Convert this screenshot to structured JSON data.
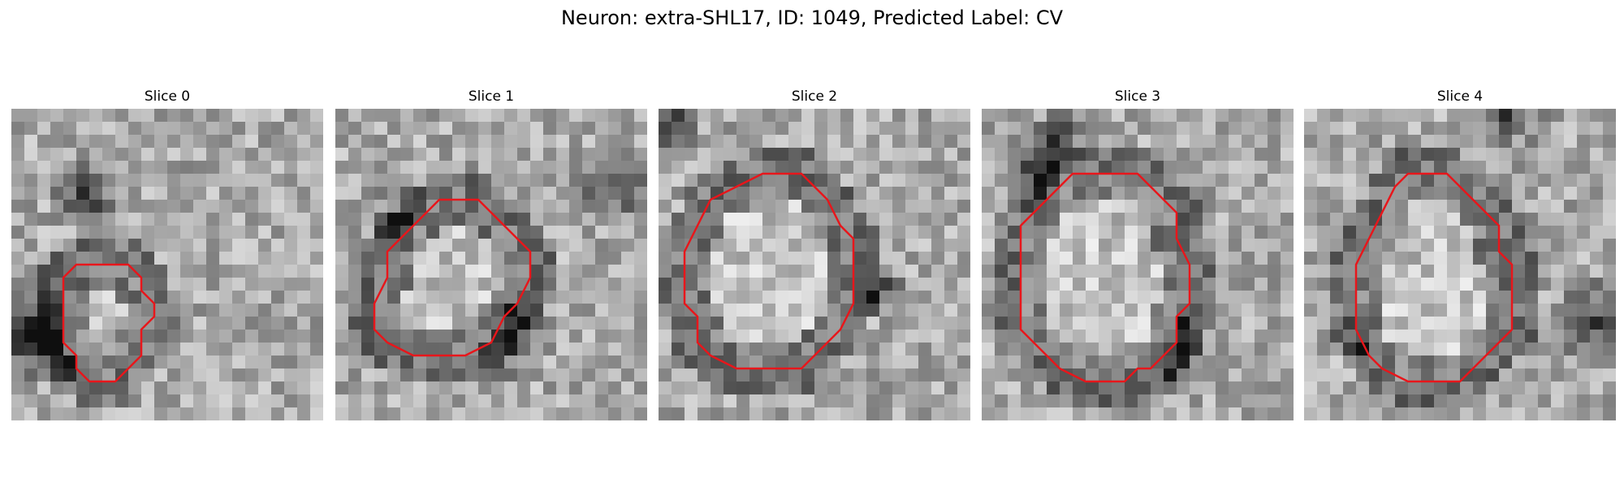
{
  "figure": {
    "title": "Neuron: extra-SHL17, ID: 1049, Predicted Label: CV"
  },
  "colors": {
    "contour": "#e8161b",
    "background": "#ffffff"
  },
  "panels": [
    {
      "title": "Slice 0",
      "seed": 11,
      "image_description": "grayscale EM patch with small contour lower-left of center",
      "contour": [
        [
          7,
          12
        ],
        [
          9,
          12
        ],
        [
          10,
          13
        ],
        [
          10,
          14
        ],
        [
          11,
          15
        ],
        [
          11,
          16
        ],
        [
          10,
          17
        ],
        [
          10,
          19
        ],
        [
          8,
          21
        ],
        [
          6,
          21
        ],
        [
          5,
          20
        ],
        [
          5,
          19
        ],
        [
          4,
          18
        ],
        [
          4,
          13
        ],
        [
          5,
          12
        ]
      ]
    },
    {
      "title": "Slice 1",
      "seed": 23,
      "image_description": "grayscale EM patch with large octagonal contour",
      "contour": [
        [
          8,
          7
        ],
        [
          11,
          7
        ],
        [
          13,
          9
        ],
        [
          14,
          10
        ],
        [
          15,
          11
        ],
        [
          15,
          13
        ],
        [
          14,
          15
        ],
        [
          13,
          16
        ],
        [
          12,
          18
        ],
        [
          10,
          19
        ],
        [
          6,
          19
        ],
        [
          4,
          18
        ],
        [
          3,
          17
        ],
        [
          3,
          15
        ],
        [
          4,
          13
        ],
        [
          4,
          11
        ],
        [
          5,
          10
        ],
        [
          6,
          9
        ]
      ]
    },
    {
      "title": "Slice 2",
      "seed": 37,
      "image_description": "grayscale EM patch with large octagonal contour",
      "contour": [
        [
          8,
          5
        ],
        [
          11,
          5
        ],
        [
          12,
          6
        ],
        [
          13,
          7
        ],
        [
          14,
          9
        ],
        [
          15,
          10
        ],
        [
          15,
          15
        ],
        [
          14,
          17
        ],
        [
          13,
          18
        ],
        [
          12,
          19
        ],
        [
          11,
          20
        ],
        [
          9,
          20
        ],
        [
          6,
          20
        ],
        [
          4,
          19
        ],
        [
          3,
          18
        ],
        [
          3,
          16
        ],
        [
          2,
          15
        ],
        [
          2,
          11
        ],
        [
          3,
          9
        ],
        [
          4,
          7
        ],
        [
          6,
          6
        ]
      ]
    },
    {
      "title": "Slice 3",
      "seed": 53,
      "image_description": "grayscale EM patch with large octagonal contour",
      "contour": [
        [
          7,
          5
        ],
        [
          12,
          5
        ],
        [
          14,
          7
        ],
        [
          15,
          8
        ],
        [
          15,
          10
        ],
        [
          16,
          12
        ],
        [
          16,
          15
        ],
        [
          15,
          16
        ],
        [
          15,
          18
        ],
        [
          14,
          19
        ],
        [
          13,
          20
        ],
        [
          12,
          20
        ],
        [
          11,
          21
        ],
        [
          8,
          21
        ],
        [
          6,
          20
        ],
        [
          5,
          19
        ],
        [
          4,
          18
        ],
        [
          3,
          17
        ],
        [
          3,
          13
        ],
        [
          3,
          9
        ],
        [
          4,
          8
        ]
      ]
    },
    {
      "title": "Slice 4",
      "seed": 71,
      "image_description": "grayscale EM patch with large octagonal contour",
      "contour": [
        [
          8,
          5
        ],
        [
          11,
          5
        ],
        [
          12,
          6
        ],
        [
          13,
          7
        ],
        [
          14,
          8
        ],
        [
          15,
          9
        ],
        [
          15,
          11
        ],
        [
          16,
          12
        ],
        [
          16,
          17
        ],
        [
          15,
          18
        ],
        [
          14,
          19
        ],
        [
          13,
          20
        ],
        [
          12,
          21
        ],
        [
          8,
          21
        ],
        [
          6,
          20
        ],
        [
          5,
          19
        ],
        [
          4,
          17
        ],
        [
          4,
          14
        ],
        [
          4,
          12
        ],
        [
          5,
          10
        ],
        [
          6,
          8
        ],
        [
          7,
          6
        ]
      ]
    }
  ]
}
